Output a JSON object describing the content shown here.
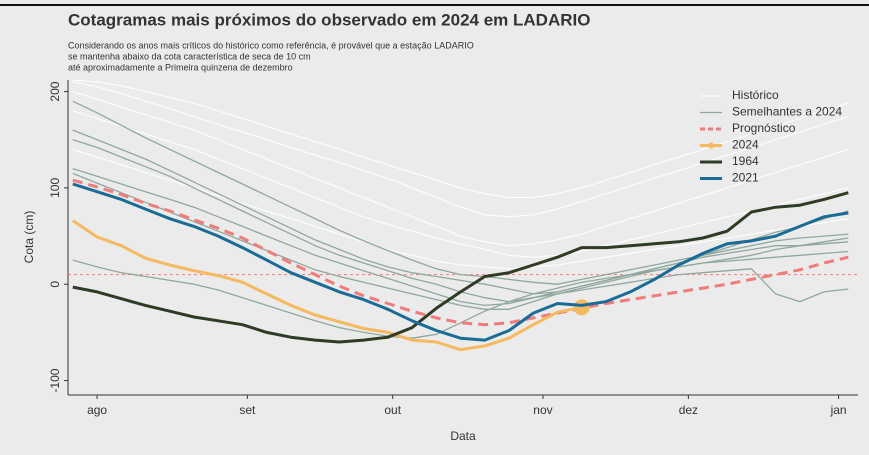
{
  "chart_data": {
    "type": "line",
    "title": "Cotagramas mais próximos do observado em 2024 em LADARIO",
    "subtitle": [
      "Considerando os anos mais críticos do histórico como referência, é provável que a estação LADARIO",
      "se mantenha abaixo da cota característica de seca de 10 cm",
      "até aproximadamente a Primeira quinzena de dezembro"
    ],
    "xlabel": "Data",
    "ylabel": "Cota (cm)",
    "x": [
      -5,
      0,
      5,
      10,
      15,
      20,
      25,
      30,
      35,
      40,
      45,
      50,
      55,
      60,
      65,
      70,
      75,
      80,
      85,
      90,
      95,
      100,
      105,
      110,
      115,
      120,
      125,
      130,
      135,
      140,
      145,
      150,
      155
    ],
    "xlim": [
      -6,
      157
    ],
    "xticks": [
      {
        "value": 0,
        "label": "ago"
      },
      {
        "value": 31,
        "label": "set"
      },
      {
        "value": 61,
        "label": "out"
      },
      {
        "value": 92,
        "label": "nov"
      },
      {
        "value": 122,
        "label": "dez"
      },
      {
        "value": 153,
        "label": "jan"
      }
    ],
    "ylim": [
      -115,
      212
    ],
    "yticks": [
      -100,
      0,
      100,
      200
    ],
    "grid": false,
    "legend": "top-right",
    "threshold": 10,
    "threshold_color": "#f08080",
    "series": [
      {
        "name": "Histórico",
        "color": "#ffffff",
        "lines": [
          [
            210,
            205,
            198,
            190,
            182,
            174,
            166,
            158,
            150,
            142,
            134,
            126,
            118,
            110,
            100,
            90,
            80,
            72,
            70,
            72,
            78,
            86,
            94,
            102,
            110,
            118,
            126,
            134,
            142,
            150,
            158,
            166,
            174
          ],
          [
            200,
            192,
            184,
            176,
            168,
            160,
            150,
            140,
            130,
            120,
            110,
            100,
            90,
            80,
            70,
            60,
            50,
            44,
            40,
            42,
            46,
            52,
            60,
            68,
            76,
            84,
            92,
            100,
            108,
            116,
            124,
            132,
            140
          ],
          [
            212,
            210,
            206,
            200,
            194,
            188,
            180,
            172,
            164,
            156,
            148,
            140,
            132,
            124,
            116,
            108,
            100,
            94,
            90,
            90,
            94,
            100,
            108,
            116,
            124,
            132,
            140,
            148,
            156,
            164,
            172,
            180,
            188
          ],
          [
            180,
            172,
            164,
            156,
            148,
            140,
            130,
            120,
            110,
            100,
            90,
            80,
            70,
            62,
            55,
            48,
            42,
            36,
            30,
            28,
            30,
            34,
            40,
            46,
            52,
            58,
            64,
            70,
            76,
            82,
            88,
            94,
            100
          ],
          [
            140,
            132,
            124,
            116,
            108,
            100,
            92,
            84,
            76,
            68,
            60,
            52,
            44,
            36,
            30,
            24,
            20,
            18,
            16,
            18,
            20,
            24,
            28,
            32,
            36,
            40,
            44,
            48,
            52,
            56,
            60,
            64,
            68
          ]
        ]
      },
      {
        "name": "Semelhantes a 2024",
        "color": "#8fa89e",
        "lines": [
          [
            190,
            178,
            165,
            152,
            140,
            128,
            116,
            104,
            92,
            80,
            68,
            56,
            45,
            35,
            25,
            16,
            10,
            8,
            5,
            2,
            0,
            5,
            10,
            15,
            20,
            25,
            30,
            35,
            40,
            45,
            48,
            50,
            52
          ],
          [
            160,
            150,
            140,
            130,
            118,
            106,
            94,
            82,
            70,
            58,
            46,
            36,
            26,
            18,
            12,
            8,
            4,
            0,
            -5,
            -10,
            -8,
            -2,
            4,
            10,
            16,
            22,
            30,
            38,
            46,
            54,
            60,
            68,
            76
          ],
          [
            150,
            142,
            132,
            122,
            112,
            100,
            88,
            76,
            64,
            52,
            40,
            30,
            22,
            14,
            6,
            0,
            -8,
            -14,
            -18,
            -10,
            -4,
            2,
            6,
            10,
            14,
            18,
            22,
            26,
            30,
            36,
            40,
            44,
            48
          ],
          [
            120,
            112,
            104,
            96,
            88,
            80,
            70,
            60,
            50,
            40,
            30,
            22,
            14,
            6,
            -2,
            -10,
            -18,
            -22,
            -20,
            -14,
            -8,
            -2,
            4,
            10,
            16,
            22,
            28,
            32,
            36,
            40,
            40,
            42,
            44
          ],
          [
            115,
            105,
            95,
            85,
            75,
            65,
            55,
            45,
            35,
            25,
            15,
            8,
            2,
            -4,
            -10,
            -16,
            -22,
            -26,
            -26,
            -18,
            -10,
            -4,
            2,
            8,
            14,
            18,
            22,
            24,
            26,
            28,
            30,
            32,
            34
          ],
          [
            25,
            18,
            12,
            8,
            4,
            0,
            -6,
            -14,
            -22,
            -30,
            -38,
            -45,
            -50,
            -54,
            -56,
            -52,
            -40,
            -28,
            -18,
            -14,
            -10,
            -6,
            -2,
            2,
            6,
            10,
            12,
            14,
            16,
            -10,
            -18,
            -8,
            -5
          ]
        ]
      },
      {
        "name": "Prognóstico",
        "color": "#f07b7b",
        "dashed": true,
        "values": [
          108,
          101,
          93,
          84,
          76,
          67,
          58,
          48,
          35,
          22,
          10,
          -2,
          -12,
          -20,
          -28,
          -35,
          -40,
          -42,
          -40,
          -35,
          -30,
          -25,
          -20,
          -16,
          -12,
          -8,
          -4,
          0,
          5,
          10,
          15,
          22,
          28
        ]
      },
      {
        "name": "2024",
        "color": "#f5b95f",
        "marker": true,
        "values": [
          66,
          49,
          40,
          27,
          20,
          14,
          9,
          2,
          -10,
          -22,
          -32,
          -39,
          -46,
          -50,
          -58,
          -60,
          -68,
          -64,
          -56,
          -42,
          -29,
          -24,
          null,
          null,
          null,
          null,
          null,
          null,
          null,
          null,
          null,
          null,
          null
        ]
      },
      {
        "name": "1964",
        "color": "#2f3b25",
        "values": [
          -3,
          -8,
          -15,
          -22,
          -28,
          -34,
          -38,
          -42,
          -50,
          -55,
          -58,
          -60,
          -58,
          -55,
          -45,
          -25,
          -8,
          8,
          12,
          20,
          28,
          38,
          38,
          40,
          42,
          44,
          48,
          55,
          75,
          80,
          82,
          88,
          95
        ]
      },
      {
        "name": "2021",
        "color": "#1a6b96",
        "values": [
          104,
          96,
          88,
          78,
          68,
          60,
          50,
          38,
          25,
          12,
          2,
          -8,
          -16,
          -26,
          -38,
          -48,
          -56,
          -58,
          -48,
          -30,
          -20,
          -22,
          -18,
          -8,
          5,
          20,
          32,
          42,
          45,
          50,
          60,
          70,
          74
        ]
      }
    ]
  }
}
